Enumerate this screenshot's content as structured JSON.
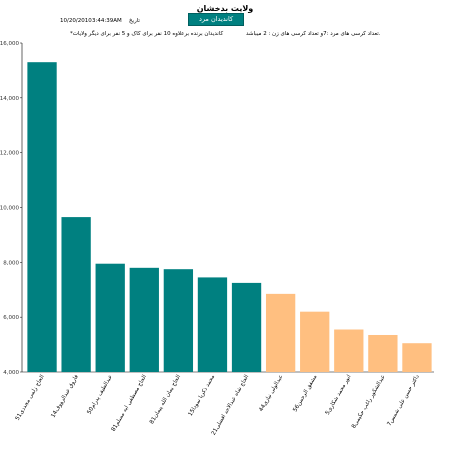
{
  "header": {
    "title": "ولایت بدخشان",
    "badge": "کاندیدان مرد",
    "date": "10/20/2010",
    "time": "3:44:39AM",
    "date_label": "تاریخ",
    "seats_line": "تعداد کرسی های مرد :7و تعداد کرسی های زن : 2 میباشد.",
    "info_line": "*کاندیدان برنده برعلاوه    10   نفر برای کاک و    5   نفر برای دیگر ولایات"
  },
  "colors": {
    "winner": "#008080",
    "other": "#FFBF80"
  },
  "chart_data": {
    "type": "bar",
    "title": "ولایت بدخشان",
    "xlabel": "",
    "ylabel": "",
    "ylim": [
      4000,
      16000
    ],
    "y_ticks": [
      "16,000",
      "14,000",
      "12,000",
      "10,000",
      "8,000",
      "6,000",
      "4,000"
    ],
    "y_tick_values": [
      16000,
      14000,
      12000,
      10000,
      8000,
      6000,
      4000
    ],
    "categories": [
      "51الحاج زلمی مجددی",
      "14فاروق عبدالرووف",
      "50عبدالطیف پدرام",
      "81الحاج مصطفی ایه مسلم",
      "81الحاج یمان الله پیمان",
      "15محمد ذکریا سودا",
      "21الحاج شاه عبدالاحد افضلی",
      "44عبدالولی نیازی",
      "56مشفق الرحمن",
      "5انور محمد شکاری",
      "8عبدالشکور راغب حکیمی",
      "7داکتر حسن علی شمس"
    ],
    "values": [
      15300,
      9650,
      7950,
      7800,
      7750,
      7450,
      7250,
      6850,
      6200,
      5550,
      5350,
      5050
    ],
    "bar_colors": [
      "winner",
      "winner",
      "winner",
      "winner",
      "winner",
      "winner",
      "winner",
      "other",
      "other",
      "other",
      "other",
      "other"
    ],
    "grid": false,
    "legend": "none"
  }
}
